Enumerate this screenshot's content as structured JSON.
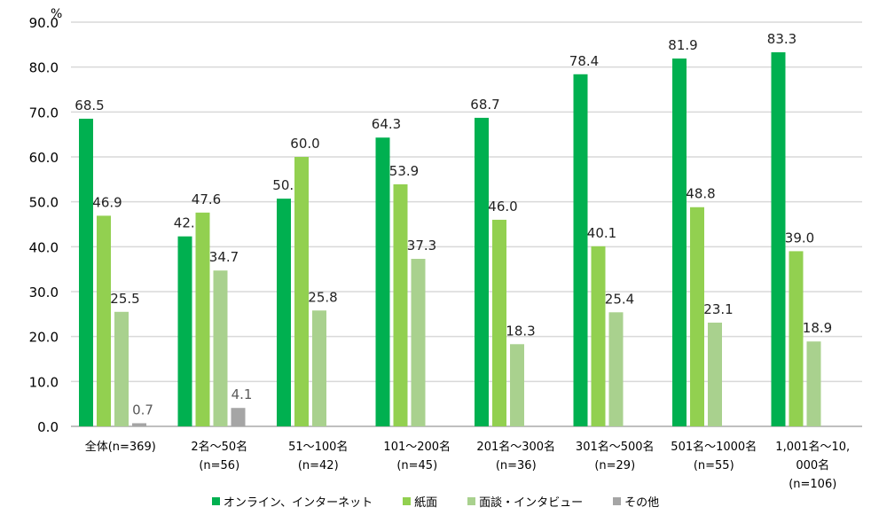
{
  "chart_data": {
    "type": "bar",
    "unit_label": "%",
    "ylim": [
      0,
      90
    ],
    "yticks": [
      "0.0",
      "10.0",
      "20.0",
      "30.0",
      "40.0",
      "50.0",
      "60.0",
      "70.0",
      "80.0",
      "90.0"
    ],
    "grid": true,
    "legend_position": "bottom",
    "categories": [
      [
        "全体(n=369)"
      ],
      [
        "2名～50名",
        "(n=56)"
      ],
      [
        "51～100名",
        "(n=42)"
      ],
      [
        "101～200名",
        "(n=45)"
      ],
      [
        "201名～300名",
        "(n=36)"
      ],
      [
        "301名～500名",
        "(n=29)"
      ],
      [
        "501名～1000名",
        "(n=55)"
      ],
      [
        "1,001名～10,",
        "000名",
        "(n=106)"
      ]
    ],
    "series": [
      {
        "name": "オンライン、インターネット",
        "color": "#00b050",
        "values": [
          68.5,
          42.3,
          50.7,
          64.3,
          68.7,
          78.4,
          81.9,
          83.3
        ]
      },
      {
        "name": "紙面",
        "color": "#92d050",
        "values": [
          46.9,
          47.6,
          60.0,
          53.9,
          46.0,
          40.1,
          48.8,
          39.0
        ]
      },
      {
        "name": "面談・インタビュー",
        "color": "#a9d18e",
        "values": [
          25.5,
          34.7,
          25.8,
          37.3,
          18.3,
          25.4,
          23.1,
          18.9
        ]
      },
      {
        "name": "その他",
        "color": "#a5a5a5",
        "values": [
          0.7,
          4.1,
          null,
          null,
          null,
          null,
          null,
          null
        ]
      }
    ]
  }
}
